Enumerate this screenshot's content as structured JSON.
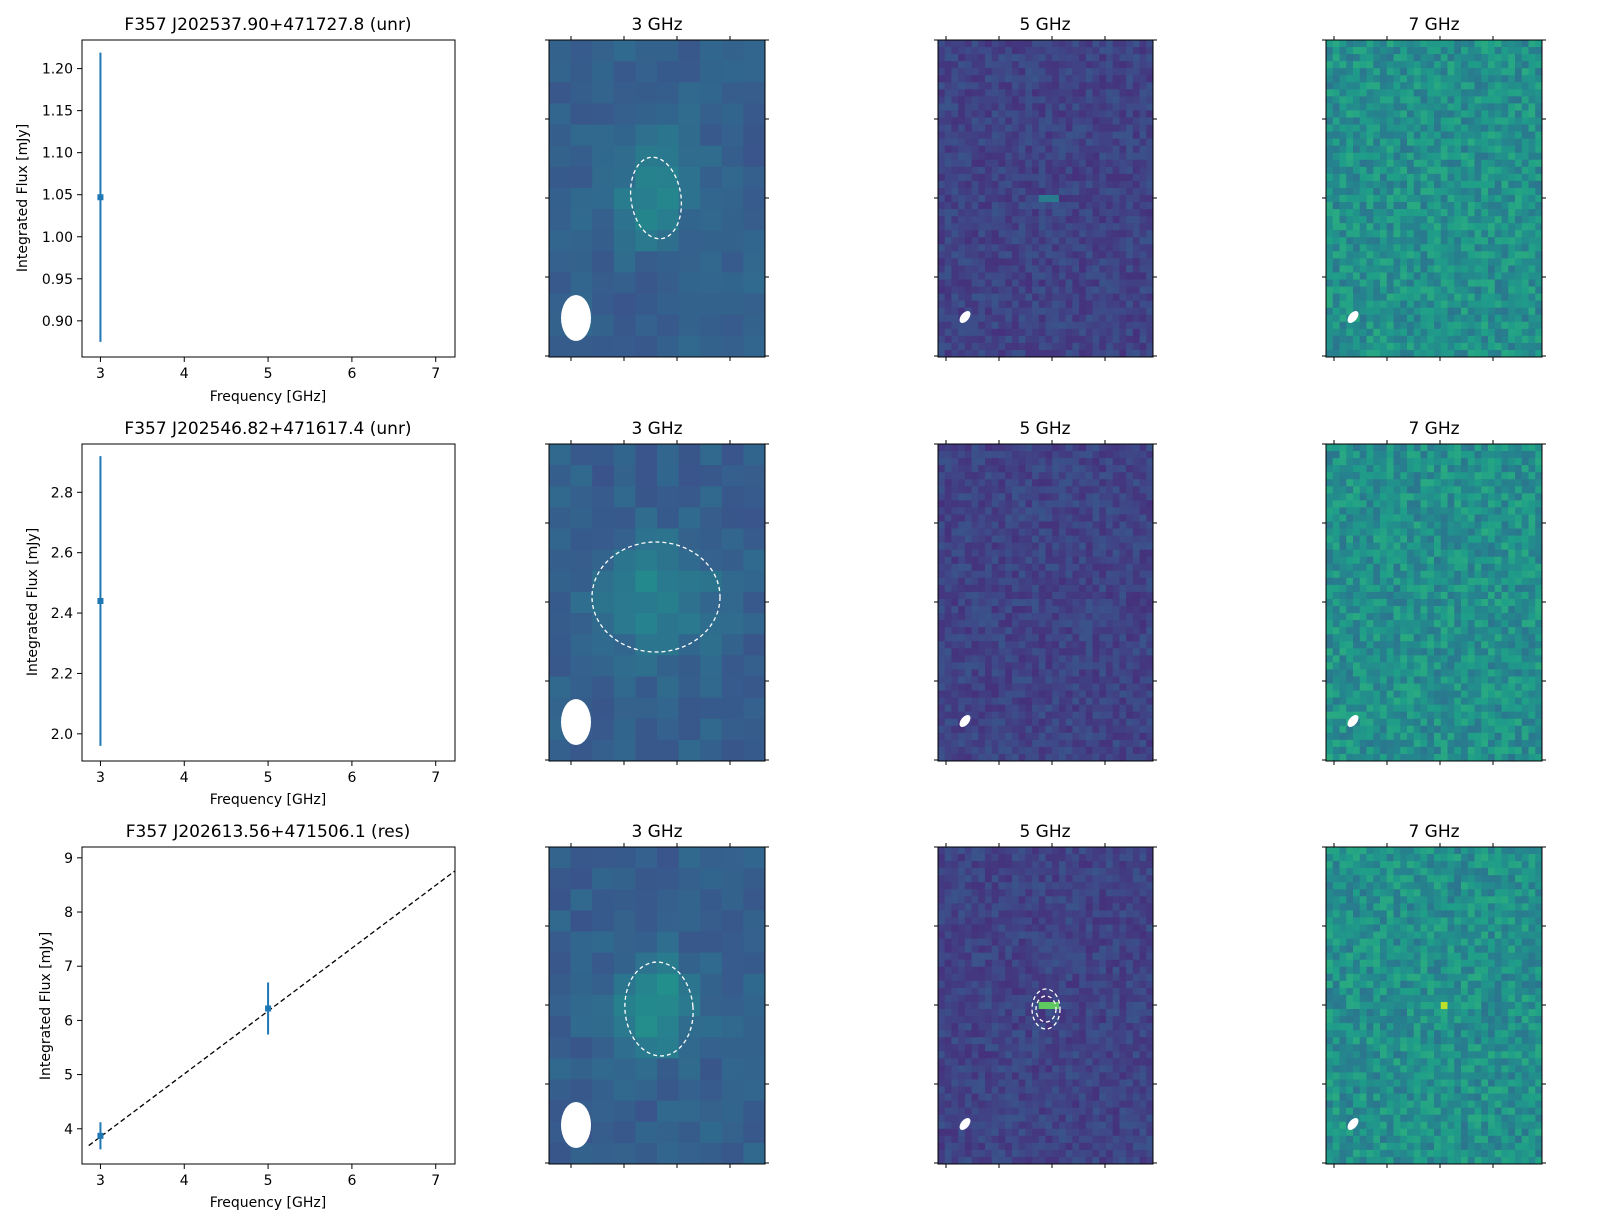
{
  "figure": {
    "freq_ticks": [
      "3",
      "4",
      "5",
      "6",
      "7"
    ],
    "xlabel": "Frequency [GHz]",
    "ylabel": "Integrated Flux [mJy]"
  },
  "chart_data": [
    {
      "type": "scatter",
      "title": "F357 J202537.90+471727.8 (unr)",
      "xlabel": "Frequency [GHz]",
      "ylabel": "Integrated Flux [mJy]",
      "xlim": [
        2.78,
        7.23
      ],
      "ylim": [
        0.857,
        1.234
      ],
      "yticks": [
        0.9,
        0.95,
        1.0,
        1.05,
        1.1,
        1.15,
        1.2
      ],
      "ytick_labels": [
        "0.90",
        "0.95",
        "1.00",
        "1.05",
        "1.10",
        "1.15",
        "1.20"
      ],
      "points": [
        {
          "x": 3,
          "y": 1.047,
          "yerr_low": 0.172,
          "yerr_high": 0.172
        }
      ],
      "fit_line": null,
      "color": "#1f77b4",
      "panels": [
        {
          "title": "3 GHz",
          "cmap": "viridis",
          "beam": "large",
          "source_ellipse": "single"
        },
        {
          "title": "5 GHz",
          "cmap": "viridis",
          "beam": "small",
          "source_ellipse": "none"
        },
        {
          "title": "7 GHz",
          "cmap": "viridis",
          "beam": "small",
          "source_ellipse": "none"
        }
      ]
    },
    {
      "type": "scatter",
      "title": "F357 J202546.82+471617.4 (unr)",
      "xlabel": "Frequency [GHz]",
      "ylabel": "Integrated Flux [mJy]",
      "xlim": [
        2.78,
        7.23
      ],
      "ylim": [
        1.91,
        2.96
      ],
      "yticks": [
        2.0,
        2.2,
        2.4,
        2.6,
        2.8
      ],
      "ytick_labels": [
        "2.0",
        "2.2",
        "2.4",
        "2.6",
        "2.8"
      ],
      "points": [
        {
          "x": 3,
          "y": 2.44,
          "yerr_low": 0.48,
          "yerr_high": 0.48
        }
      ],
      "fit_line": null,
      "color": "#1f77b4",
      "panels": [
        {
          "title": "3 GHz",
          "cmap": "viridis",
          "beam": "large",
          "source_ellipse": "single"
        },
        {
          "title": "5 GHz",
          "cmap": "viridis",
          "beam": "small",
          "source_ellipse": "none"
        },
        {
          "title": "7 GHz",
          "cmap": "viridis",
          "beam": "small",
          "source_ellipse": "none"
        }
      ]
    },
    {
      "type": "scatter",
      "title": "F357 J202613.56+471506.1 (res)",
      "xlabel": "Frequency [GHz]",
      "ylabel": "Integrated Flux [mJy]",
      "xlim": [
        2.78,
        7.23
      ],
      "ylim": [
        3.35,
        9.2
      ],
      "yticks": [
        4,
        5,
        6,
        7,
        8,
        9
      ],
      "ytick_labels": [
        "4",
        "5",
        "6",
        "7",
        "8",
        "9"
      ],
      "points": [
        {
          "x": 3,
          "y": 3.87,
          "yerr_low": 0.25,
          "yerr_high": 0.25
        },
        {
          "x": 5,
          "y": 6.22,
          "yerr_low": 0.48,
          "yerr_high": 0.48
        }
      ],
      "fit_line": {
        "x": [
          2.86,
          7.23
        ],
        "y": [
          3.69,
          8.76
        ],
        "style": "dashed",
        "color": "#000000"
      },
      "color": "#1f77b4",
      "panels": [
        {
          "title": "3 GHz",
          "cmap": "viridis",
          "beam": "large",
          "source_ellipse": "single"
        },
        {
          "title": "5 GHz",
          "cmap": "viridis",
          "beam": "small",
          "source_ellipse": "double"
        },
        {
          "title": "7 GHz",
          "cmap": "viridis",
          "beam": "small",
          "source_ellipse": "none"
        }
      ]
    }
  ]
}
